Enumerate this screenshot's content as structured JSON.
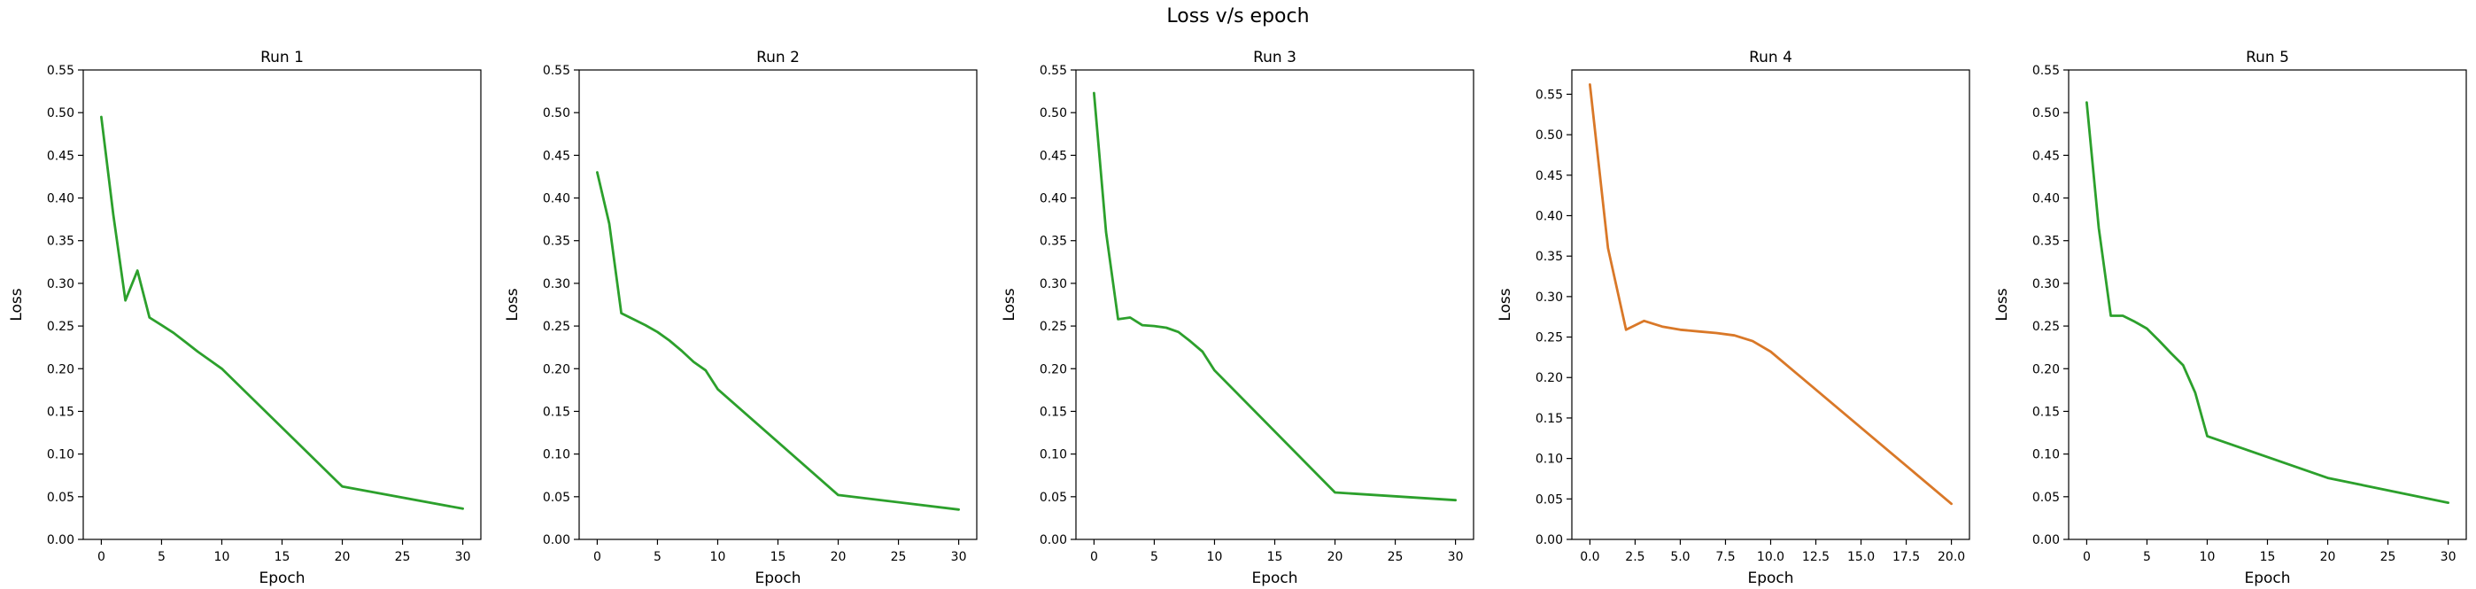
{
  "suptitle": "Loss v/s epoch",
  "chart_data": [
    {
      "type": "line",
      "title": "Run 1",
      "xlabel": "Epoch",
      "ylabel": "Loss",
      "xlim": [
        -1.5,
        31.5
      ],
      "ylim": [
        0,
        0.55
      ],
      "xticks": [
        0,
        5,
        10,
        15,
        20,
        25,
        30
      ],
      "xtick_labels": [
        "0",
        "5",
        "10",
        "15",
        "20",
        "25",
        "30"
      ],
      "yticks": [
        0,
        0.05,
        0.1,
        0.15,
        0.2,
        0.25,
        0.3,
        0.35,
        0.4,
        0.45,
        0.5,
        0.55
      ],
      "ytick_labels": [
        "0.00",
        "0.05",
        "0.10",
        "0.15",
        "0.20",
        "0.25",
        "0.30",
        "0.35",
        "0.40",
        "0.45",
        "0.50",
        "0.55"
      ],
      "grid": false,
      "color": "#2ca02c",
      "series": [
        {
          "x": [
            0,
            1,
            2,
            3,
            4,
            5,
            6,
            7,
            8,
            9,
            10,
            20,
            30
          ],
          "y": [
            0.495,
            0.38,
            0.28,
            0.315,
            0.26,
            0.251,
            0.242,
            0.231,
            0.22,
            0.21,
            0.2,
            0.062,
            0.036
          ]
        }
      ]
    },
    {
      "type": "line",
      "title": "Run 2",
      "xlabel": "Epoch",
      "ylabel": "Loss",
      "xlim": [
        -1.5,
        31.5
      ],
      "ylim": [
        0,
        0.55
      ],
      "xticks": [
        0,
        5,
        10,
        15,
        20,
        25,
        30
      ],
      "xtick_labels": [
        "0",
        "5",
        "10",
        "15",
        "20",
        "25",
        "30"
      ],
      "yticks": [
        0,
        0.05,
        0.1,
        0.15,
        0.2,
        0.25,
        0.3,
        0.35,
        0.4,
        0.45,
        0.5,
        0.55
      ],
      "ytick_labels": [
        "0.00",
        "0.05",
        "0.10",
        "0.15",
        "0.20",
        "0.25",
        "0.30",
        "0.35",
        "0.40",
        "0.45",
        "0.50",
        "0.55"
      ],
      "grid": false,
      "color": "#2ca02c",
      "series": [
        {
          "x": [
            0,
            1,
            2,
            3,
            4,
            5,
            6,
            7,
            8,
            9,
            10,
            20,
            30
          ],
          "y": [
            0.43,
            0.37,
            0.265,
            0.258,
            0.251,
            0.243,
            0.233,
            0.221,
            0.208,
            0.198,
            0.176,
            0.052,
            0.035
          ]
        }
      ]
    },
    {
      "type": "line",
      "title": "Run 3",
      "xlabel": "Epoch",
      "ylabel": "Loss",
      "xlim": [
        -1.5,
        31.5
      ],
      "ylim": [
        0,
        0.55
      ],
      "xticks": [
        0,
        5,
        10,
        15,
        20,
        25,
        30
      ],
      "xtick_labels": [
        "0",
        "5",
        "10",
        "15",
        "20",
        "25",
        "30"
      ],
      "yticks": [
        0,
        0.05,
        0.1,
        0.15,
        0.2,
        0.25,
        0.3,
        0.35,
        0.4,
        0.45,
        0.5,
        0.55
      ],
      "ytick_labels": [
        "0.00",
        "0.05",
        "0.10",
        "0.15",
        "0.20",
        "0.25",
        "0.30",
        "0.35",
        "0.40",
        "0.45",
        "0.50",
        "0.55"
      ],
      "grid": false,
      "color": "#2ca02c",
      "series": [
        {
          "x": [
            0,
            1,
            2,
            3,
            4,
            5,
            6,
            7,
            8,
            9,
            10,
            20,
            30
          ],
          "y": [
            0.523,
            0.36,
            0.258,
            0.26,
            0.251,
            0.25,
            0.248,
            0.243,
            0.232,
            0.22,
            0.198,
            0.055,
            0.046
          ]
        }
      ]
    },
    {
      "type": "line",
      "title": "Run 4",
      "xlabel": "Epoch",
      "ylabel": "Loss",
      "xlim": [
        -1.0,
        21.0
      ],
      "ylim": [
        0,
        0.58
      ],
      "xticks": [
        0,
        2.5,
        5,
        7.5,
        10,
        12.5,
        15,
        17.5,
        20
      ],
      "xtick_labels": [
        "0.0",
        "2.5",
        "5.0",
        "7.5",
        "10.0",
        "12.5",
        "15.0",
        "17.5",
        "20.0"
      ],
      "yticks": [
        0,
        0.05,
        0.1,
        0.15,
        0.2,
        0.25,
        0.3,
        0.35,
        0.4,
        0.45,
        0.5,
        0.55
      ],
      "ytick_labels": [
        "0.00",
        "0.05",
        "0.10",
        "0.15",
        "0.20",
        "0.25",
        "0.30",
        "0.35",
        "0.40",
        "0.45",
        "0.50",
        "0.55"
      ],
      "grid": false,
      "color": "#d97828",
      "series": [
        {
          "x": [
            0,
            1,
            2,
            3,
            4,
            5,
            6,
            7,
            8,
            9,
            10,
            20
          ],
          "y": [
            0.562,
            0.36,
            0.259,
            0.27,
            0.263,
            0.259,
            0.257,
            0.255,
            0.252,
            0.245,
            0.232,
            0.044
          ]
        }
      ]
    },
    {
      "type": "line",
      "title": "Run 5",
      "xlabel": "Epoch",
      "ylabel": "Loss",
      "xlim": [
        -1.5,
        31.5
      ],
      "ylim": [
        0,
        0.55
      ],
      "xticks": [
        0,
        5,
        10,
        15,
        20,
        25,
        30
      ],
      "xtick_labels": [
        "0",
        "5",
        "10",
        "15",
        "20",
        "25",
        "30"
      ],
      "yticks": [
        0,
        0.05,
        0.1,
        0.15,
        0.2,
        0.25,
        0.3,
        0.35,
        0.4,
        0.45,
        0.5,
        0.55
      ],
      "ytick_labels": [
        "0.00",
        "0.05",
        "0.10",
        "0.15",
        "0.20",
        "0.25",
        "0.30",
        "0.35",
        "0.40",
        "0.45",
        "0.50",
        "0.55"
      ],
      "grid": false,
      "color": "#2ca02c",
      "series": [
        {
          "x": [
            0,
            1,
            2,
            3,
            4,
            5,
            6,
            7,
            8,
            9,
            10,
            20,
            30
          ],
          "y": [
            0.512,
            0.365,
            0.262,
            0.262,
            0.255,
            0.247,
            0.233,
            0.218,
            0.204,
            0.172,
            0.121,
            0.072,
            0.043
          ]
        }
      ]
    }
  ]
}
